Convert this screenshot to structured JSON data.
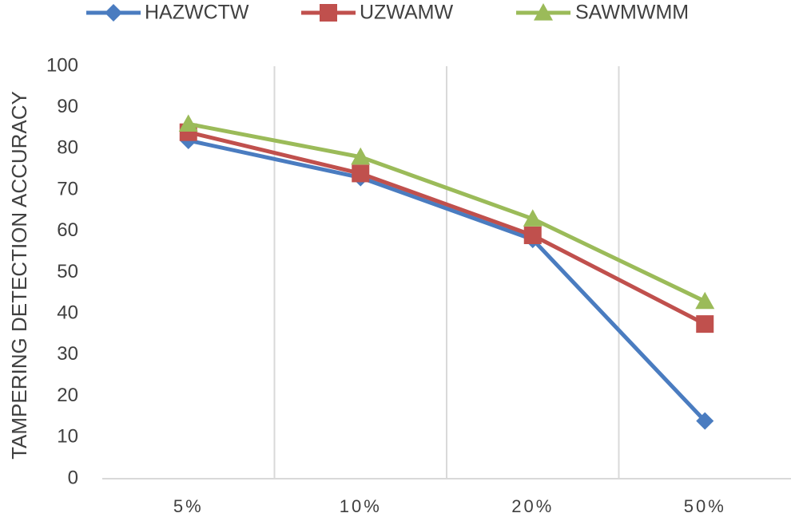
{
  "chart_data": {
    "type": "line",
    "title": "",
    "xlabel": "",
    "ylabel": "TAMPERING DETECTION ACCURACY",
    "categories": [
      "5%",
      "10%",
      "20%",
      "50%"
    ],
    "ylim": [
      0,
      100
    ],
    "yticks": [
      0,
      10,
      20,
      30,
      40,
      50,
      60,
      70,
      80,
      90,
      100
    ],
    "grid": "vertical",
    "legend": "top",
    "series": [
      {
        "name": "HAZWCTW",
        "values": [
          82,
          73,
          58,
          14
        ],
        "color": "#4a7cc0",
        "marker": "diamond"
      },
      {
        "name": "UZWAMW",
        "values": [
          84,
          74,
          59,
          37.5
        ],
        "color": "#c0504d",
        "marker": "square"
      },
      {
        "name": "SAWMWMM",
        "values": [
          86,
          78,
          63,
          43
        ],
        "color": "#9bbb59",
        "marker": "triangle"
      }
    ]
  }
}
